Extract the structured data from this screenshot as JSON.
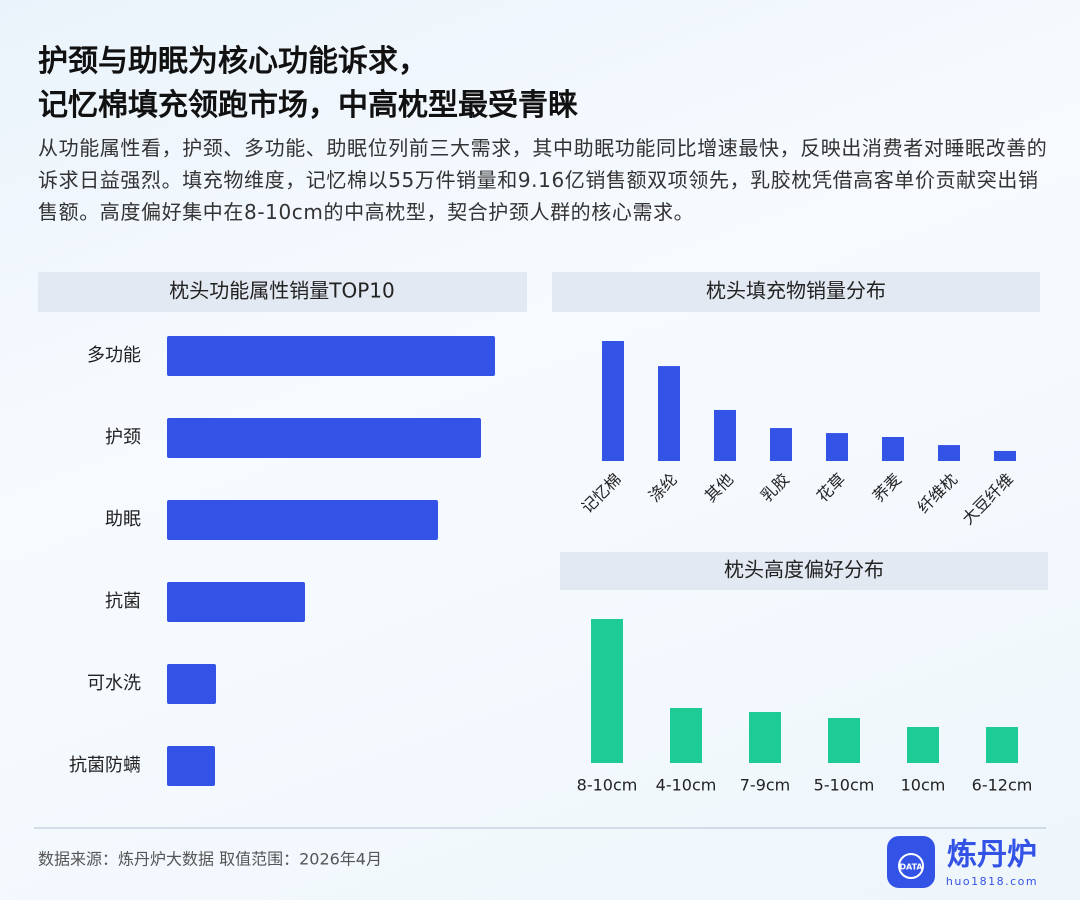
{
  "header": {
    "title": [
      "护颈与助眠为核心功能诉求，",
      "记忆棉填充领跑市场，中高枕型最受青睐"
    ],
    "description": "从功能属性看，护颈、多功能、助眠位列前三大需求，其中助眠功能同比增速最快，反映出消费者对睡眠改善的诉求日益强烈。填充物维度，记忆棉以55万件销量和9.16亿销售额双项领先，乳胶枕凭借高客单价贡献突出销售额。高度偏好集中在8-10cm的中高枕型，契合护颈人群的核心需求。"
  },
  "chart_data": [
    {
      "type": "bar",
      "orientation": "horizontal",
      "title": "枕头功能属性销量TOP10",
      "color": "#3352e6",
      "categories": [
        "多功能",
        "护颈",
        "助眠",
        "抗菌",
        "可水洗",
        "抗菌防螨"
      ],
      "values": [
        328,
        314,
        271,
        138,
        49,
        48
      ]
    },
    {
      "type": "bar",
      "orientation": "vertical",
      "title": "枕头填充物销量分布",
      "color": "#3352e6",
      "categories": [
        "记忆棉",
        "涤纶",
        "其他",
        "乳胶",
        "花草",
        "荞麦",
        "纤维枕",
        "大豆纤维"
      ],
      "values": [
        55,
        43.5,
        23.4,
        15.1,
        12.8,
        11,
        7.3,
        4.6
      ]
    },
    {
      "type": "bar",
      "orientation": "vertical",
      "title": "枕头高度偏好分布",
      "color": "#1dcc95",
      "categories": [
        "8-10cm",
        "4-10cm",
        "7-9cm",
        "5-10cm",
        "10cm",
        "6-12cm"
      ],
      "values": [
        144,
        55,
        51,
        45,
        36,
        36
      ]
    }
  ],
  "footer": {
    "source": "数据来源：炼丹炉大数据  取值范围：2026年4月",
    "brand": "炼丹炉",
    "url": "huo1818.com",
    "badge": "DATA"
  }
}
